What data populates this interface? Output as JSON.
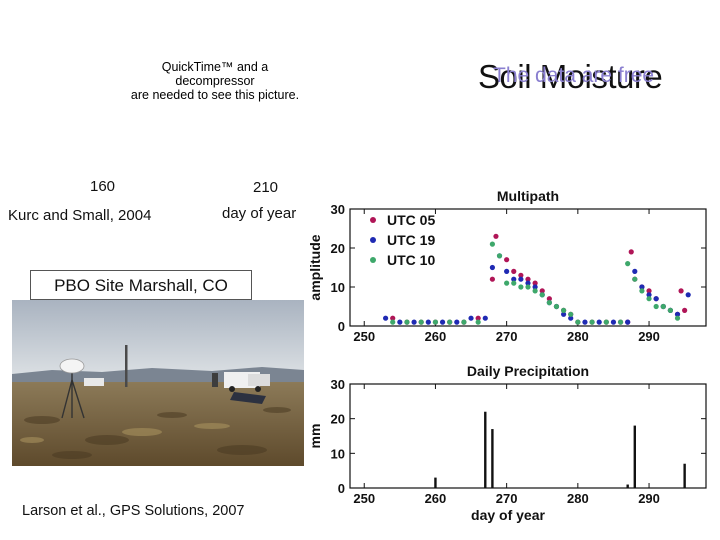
{
  "slide": {
    "title": "Soil Moisture",
    "overlay_text": "The data are free",
    "quicktime_notice": [
      "QuickTime™ and a",
      "decompressor",
      "are needed to see this picture."
    ],
    "label_160": "160",
    "label_210": "210",
    "label_doy": "day of year",
    "kurc": "Kurc and Small, 2004",
    "site_label": "PBO Site Marshall, CO",
    "citation": "Larson et al., GPS Solutions, 2007"
  },
  "chart_data": [
    {
      "type": "scatter",
      "title": "Multipath",
      "xlabel": "",
      "ylabel": "amplitude",
      "xlim": [
        248,
        298
      ],
      "ylim": [
        0,
        30
      ],
      "xticks": [
        250,
        260,
        270,
        280,
        290
      ],
      "yticks": [
        0,
        10,
        20,
        30
      ],
      "grid": false,
      "legend_position": "top-left",
      "series": [
        {
          "name": "UTC 05",
          "color": "#b01557",
          "x": [
            254,
            256,
            258,
            260,
            262,
            264,
            266,
            268,
            268.5,
            270,
            271,
            272,
            273,
            274,
            275,
            276,
            277,
            278,
            279,
            280,
            282,
            284,
            286,
            287,
            287.5,
            288,
            289,
            290,
            291,
            292,
            293,
            294,
            294.5,
            295
          ],
          "y": [
            2,
            1,
            1,
            1,
            1,
            1,
            2,
            12,
            23,
            17,
            14,
            13,
            12,
            11,
            9,
            7,
            5,
            4,
            3,
            1,
            1,
            1,
            1,
            1,
            19,
            12,
            10,
            9,
            7,
            5,
            4,
            3,
            9,
            4
          ]
        },
        {
          "name": "UTC 19",
          "color": "#1f2ab3",
          "x": [
            253,
            255,
            257,
            259,
            261,
            263,
            265,
            267,
            268,
            269,
            270,
            271,
            272,
            273,
            274,
            275,
            276,
            277,
            278,
            279,
            281,
            283,
            285,
            287,
            288,
            289,
            290,
            291,
            292,
            293,
            294,
            295.5
          ],
          "y": [
            2,
            1,
            1,
            1,
            1,
            1,
            2,
            2,
            15,
            18,
            14,
            12,
            12,
            11,
            10,
            8,
            6,
            5,
            3,
            2,
            1,
            1,
            1,
            1,
            14,
            10,
            8,
            7,
            5,
            4,
            3,
            8
          ]
        },
        {
          "name": "UTC 10",
          "color": "#3ea86b",
          "x": [
            254,
            256,
            258,
            260,
            262,
            264,
            266,
            268,
            269,
            270,
            271,
            272,
            273,
            274,
            275,
            276,
            277,
            278,
            279,
            280,
            282,
            284,
            286,
            287,
            288,
            289,
            290,
            291,
            292,
            293,
            294
          ],
          "y": [
            1,
            1,
            1,
            1,
            1,
            1,
            1,
            21,
            18,
            11,
            11,
            10,
            10,
            9,
            8,
            6,
            5,
            4,
            3,
            1,
            1,
            1,
            1,
            16,
            12,
            9,
            7,
            5,
            5,
            4,
            2
          ]
        }
      ]
    },
    {
      "type": "bar",
      "title": "Daily Precipitation",
      "xlabel": "day of year",
      "ylabel": "mm",
      "xlim": [
        248,
        298
      ],
      "ylim": [
        0,
        30
      ],
      "xticks": [
        250,
        260,
        270,
        280,
        290
      ],
      "yticks": [
        0,
        10,
        20,
        30
      ],
      "grid": false,
      "x": [
        260,
        267,
        268,
        287,
        288,
        295
      ],
      "values": [
        3,
        22,
        17,
        1,
        18,
        7
      ]
    }
  ],
  "colors": {
    "frame": "#111111",
    "site_label_border": "#555555"
  },
  "icons": {
    "site_photo": "field-photo-gps-antenna"
  }
}
